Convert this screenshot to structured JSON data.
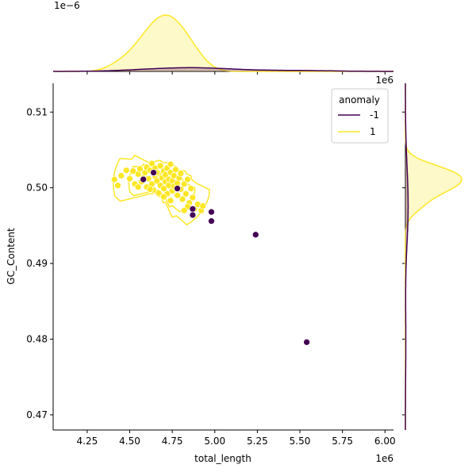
{
  "chart_data": {
    "type": "scatter",
    "xlabel": "total_length",
    "ylabel": "GC_Content",
    "x_offset_label": "1e6",
    "top_marginal_offset_label": "1e−6",
    "right_marginal_offset_label": "1e6",
    "xlim": [
      4.05,
      6.05
    ],
    "ylim": [
      0.468,
      0.5138
    ],
    "x_ticks": [
      "4.25",
      "4.50",
      "4.75",
      "5.00",
      "5.25",
      "5.50",
      "5.75",
      "6.00"
    ],
    "y_ticks": [
      "0.47",
      "0.48",
      "0.49",
      "0.50",
      "0.51"
    ],
    "legend": {
      "title": "anomaly",
      "placement": "upper right",
      "entries": [
        {
          "label": "-1",
          "color": "#440154"
        },
        {
          "label": "1",
          "color": "#fde725"
        }
      ]
    },
    "series": [
      {
        "name": "1",
        "color": "#fde725",
        "points": [
          [
            4.41,
            0.5011
          ],
          [
            4.43,
            0.5003
          ],
          [
            4.45,
            0.5016
          ],
          [
            4.48,
            0.5023
          ],
          [
            4.5,
            0.5012
          ],
          [
            4.52,
            0.5022
          ],
          [
            4.53,
            0.5005
          ],
          [
            4.55,
            0.5018
          ],
          [
            4.56,
            0.5025
          ],
          [
            4.57,
            0.5008
          ],
          [
            4.58,
            0.5013
          ],
          [
            4.59,
            0.502
          ],
          [
            4.6,
            0.5027
          ],
          [
            4.6,
            0.5001
          ],
          [
            4.61,
            0.5012
          ],
          [
            4.62,
            0.5023
          ],
          [
            4.63,
            0.5032
          ],
          [
            4.63,
            0.5005
          ],
          [
            4.64,
            0.4997
          ],
          [
            4.65,
            0.5015
          ],
          [
            4.65,
            0.5026
          ],
          [
            4.66,
            0.5009
          ],
          [
            4.67,
            0.5019
          ],
          [
            4.67,
            0.4993
          ],
          [
            4.68,
            0.5029
          ],
          [
            4.68,
            0.5003
          ],
          [
            4.69,
            0.5013
          ],
          [
            4.7,
            0.5022
          ],
          [
            4.7,
            0.4999
          ],
          [
            4.71,
            0.5008
          ],
          [
            4.71,
            0.5017
          ],
          [
            4.72,
            0.5026
          ],
          [
            4.72,
            0.4992
          ],
          [
            4.73,
            0.5011
          ],
          [
            4.73,
            0.5003
          ],
          [
            4.74,
            0.502
          ],
          [
            4.74,
            0.5031
          ],
          [
            4.75,
            0.4996
          ],
          [
            4.75,
            0.5009
          ],
          [
            4.76,
            0.5016
          ],
          [
            4.76,
            0.5002
          ],
          [
            4.77,
            0.5024
          ],
          [
            4.78,
            0.499
          ],
          [
            4.78,
            0.5006
          ],
          [
            4.79,
            0.5013
          ],
          [
            4.8,
            0.4998
          ],
          [
            4.8,
            0.5019
          ],
          [
            4.81,
            0.4985
          ],
          [
            4.82,
            0.5005
          ],
          [
            4.83,
            0.4992
          ],
          [
            4.84,
            0.5011
          ],
          [
            4.85,
            0.498
          ],
          [
            4.86,
            0.4999
          ],
          [
            4.87,
            0.4987
          ],
          [
            4.88,
            0.4972
          ],
          [
            4.9,
            0.4978
          ],
          [
            4.92,
            0.497
          ],
          [
            4.93,
            0.4976
          ],
          [
            4.84,
            0.4975
          ],
          [
            4.82,
            0.497
          ],
          [
            4.66,
            0.502
          ],
          [
            4.7,
            0.4988
          ],
          [
            4.62,
            0.4998
          ],
          [
            4.55,
            0.5001
          ],
          [
            4.74,
            0.4983
          ]
        ]
      },
      {
        "name": "-1",
        "color": "#440154",
        "points": [
          [
            4.58,
            0.5011
          ],
          [
            4.64,
            0.502
          ],
          [
            4.78,
            0.4999
          ],
          [
            4.87,
            0.4972
          ],
          [
            4.87,
            0.4964
          ],
          [
            4.98,
            0.4968
          ],
          [
            4.98,
            0.4956
          ],
          [
            5.24,
            0.4938
          ],
          [
            5.54,
            0.4796
          ]
        ]
      }
    ],
    "marginals": {
      "top": {
        "type": "kde",
        "series": "total_length by anomaly"
      },
      "right": {
        "type": "kde",
        "series": "GC_Content by anomaly"
      }
    }
  }
}
